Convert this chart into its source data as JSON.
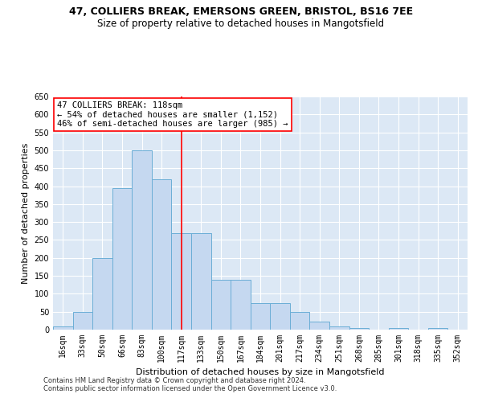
{
  "title_line1": "47, COLLIERS BREAK, EMERSONS GREEN, BRISTOL, BS16 7EE",
  "title_line2": "Size of property relative to detached houses in Mangotsfield",
  "xlabel": "Distribution of detached houses by size in Mangotsfield",
  "ylabel": "Number of detached properties",
  "bar_labels": [
    "16sqm",
    "33sqm",
    "50sqm",
    "66sqm",
    "83sqm",
    "100sqm",
    "117sqm",
    "133sqm",
    "150sqm",
    "167sqm",
    "184sqm",
    "201sqm",
    "217sqm",
    "234sqm",
    "251sqm",
    "268sqm",
    "285sqm",
    "301sqm",
    "318sqm",
    "335sqm",
    "352sqm"
  ],
  "bar_values": [
    10,
    50,
    200,
    395,
    500,
    420,
    270,
    270,
    140,
    140,
    75,
    75,
    50,
    22,
    10,
    5,
    0,
    4,
    0,
    4,
    0
  ],
  "bar_color": "#c5d8f0",
  "bar_edge_color": "#6baed6",
  "highlight_idx": 6,
  "highlight_line_color": "red",
  "annotation_text": "47 COLLIERS BREAK: 118sqm\n← 54% of detached houses are smaller (1,152)\n46% of semi-detached houses are larger (985) →",
  "annotation_box_color": "white",
  "annotation_box_edge_color": "red",
  "ylim": [
    0,
    650
  ],
  "yticks": [
    0,
    50,
    100,
    150,
    200,
    250,
    300,
    350,
    400,
    450,
    500,
    550,
    600,
    650
  ],
  "background_color": "#dce8f5",
  "grid_color": "white",
  "footer_line1": "Contains HM Land Registry data © Crown copyright and database right 2024.",
  "footer_line2": "Contains public sector information licensed under the Open Government Licence v3.0.",
  "title_fontsize": 9,
  "subtitle_fontsize": 8.5,
  "axis_label_fontsize": 8,
  "tick_fontsize": 7,
  "annotation_fontsize": 7.5,
  "footer_fontsize": 6
}
